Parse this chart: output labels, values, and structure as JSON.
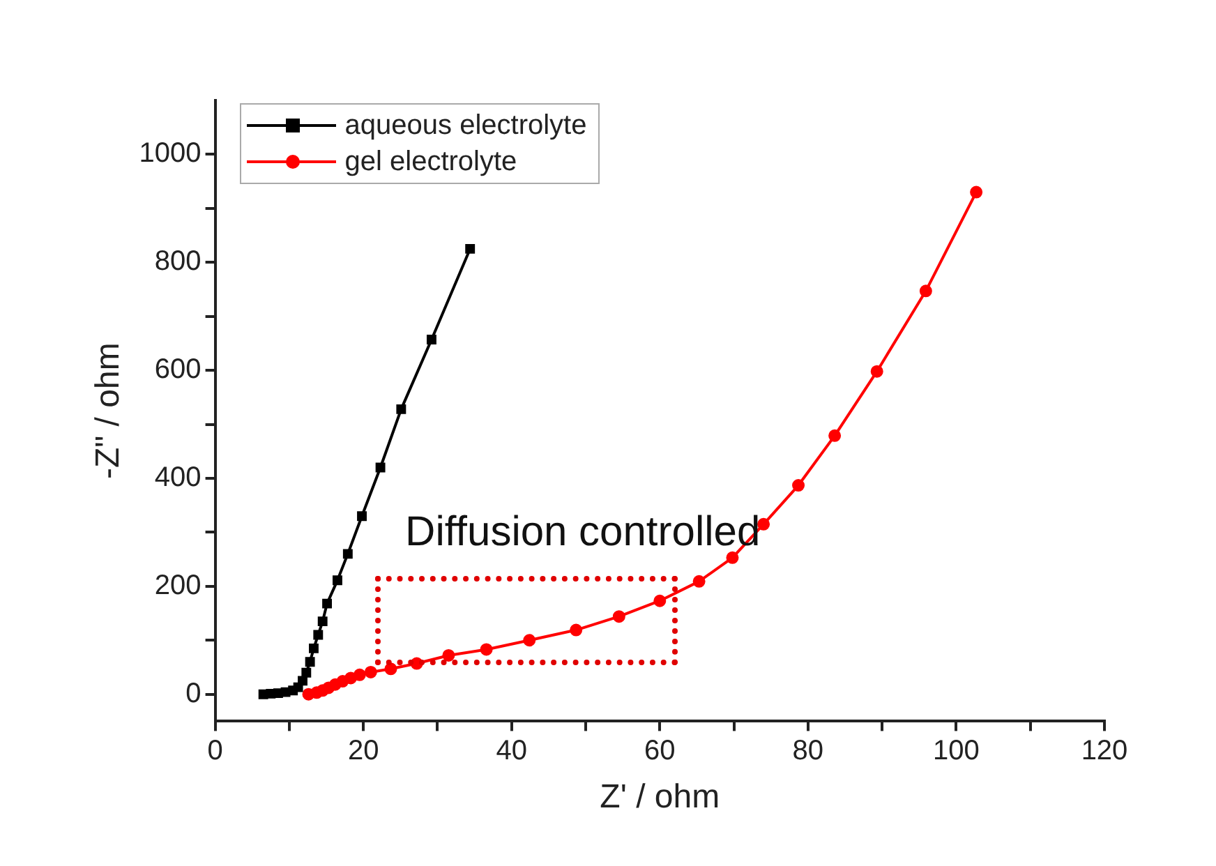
{
  "chart_data": {
    "type": "line",
    "xlabel": "Z' / ohm",
    "ylabel": "-Z\" / ohm",
    "xlim": [
      0,
      120
    ],
    "xticks": [
      0,
      {
        "value": 10,
        "label": null
      },
      20,
      {
        "value": 30,
        "label": null
      },
      40,
      {
        "value": 50,
        "label": null
      },
      60,
      {
        "value": 70,
        "label": null
      },
      80,
      {
        "value": 90,
        "label": null
      },
      100,
      {
        "value": 110,
        "label": null
      },
      120
    ],
    "ylim": [
      -50,
      1100
    ],
    "yticks": [
      0,
      {
        "value": 100,
        "label": null
      },
      200,
      {
        "value": 300,
        "label": null
      },
      400,
      {
        "value": 500,
        "label": null
      },
      600,
      {
        "value": 700,
        "label": null
      },
      800,
      {
        "value": 900,
        "label": null
      },
      1000
    ],
    "grid": false,
    "legend": "top left",
    "line_style": "solid",
    "annotations": [
      "Diffusion controlled"
    ],
    "series": [
      {
        "name": "aqueous electrolyte",
        "color": "#000000",
        "marker": "square",
        "x": [
          6.5,
          7.5,
          8.5,
          9.5,
          10.5,
          11.2,
          11.8,
          12.3,
          12.8,
          13.3,
          13.9,
          14.5,
          15.1,
          16.5,
          17.9,
          19.8,
          22.3,
          25.1,
          29.2,
          34.4
        ],
        "values": [
          0,
          1,
          2,
          4,
          7,
          13,
          25,
          40,
          60,
          85,
          110,
          135,
          168,
          211,
          260,
          330,
          420,
          528,
          657,
          825
        ]
      },
      {
        "name": "gel electrolyte",
        "color": "#ff0000",
        "marker": "circle",
        "x": [
          12.6,
          13.7,
          14.5,
          15.3,
          16.2,
          17.2,
          18.3,
          19.5,
          21.0,
          23.7,
          27.2,
          31.5,
          36.6,
          42.4,
          48.7,
          54.5,
          60.0,
          65.3,
          69.8,
          74.0,
          78.7,
          83.6,
          89.3,
          95.9,
          102.7
        ],
        "values": [
          0,
          3,
          7,
          12,
          18,
          24,
          30,
          36,
          41,
          47,
          57,
          72,
          83,
          100,
          119,
          144,
          173,
          209,
          253,
          315,
          387,
          479,
          598,
          747,
          930
        ]
      }
    ]
  }
}
